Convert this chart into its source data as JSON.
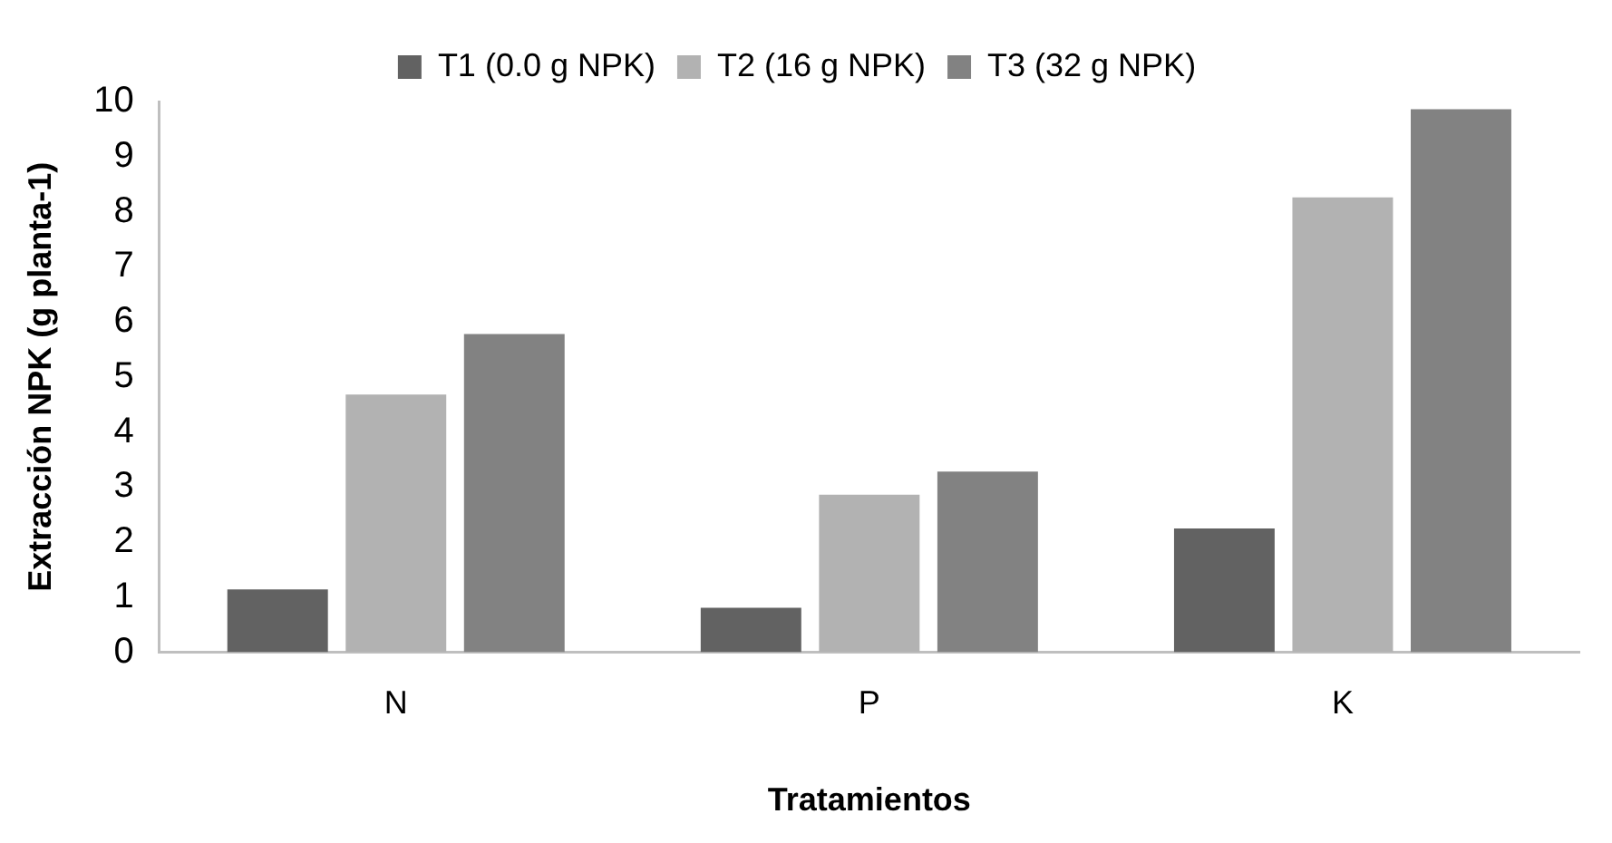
{
  "chart_data": {
    "type": "bar",
    "xlabel": "Tratamientos",
    "ylabel": "Extracción NPK (g planta-1)",
    "categories": [
      "N",
      "P",
      "K"
    ],
    "series": [
      {
        "name": "T1 (0.0 g NPK)",
        "color": "#626262",
        "values": [
          1.14,
          0.81,
          2.25
        ]
      },
      {
        "name": "T2 (16 g NPK)",
        "color": "#b2b2b2",
        "values": [
          4.68,
          2.86,
          8.26
        ]
      },
      {
        "name": "T3 (32 g NPK)",
        "color": "#828282",
        "values": [
          5.78,
          3.28,
          9.86
        ]
      }
    ],
    "ylim": [
      0,
      10
    ],
    "yticks": [
      0,
      1,
      2,
      3,
      4,
      5,
      6,
      7,
      8,
      9,
      10
    ],
    "grid": false,
    "legend": "top"
  }
}
